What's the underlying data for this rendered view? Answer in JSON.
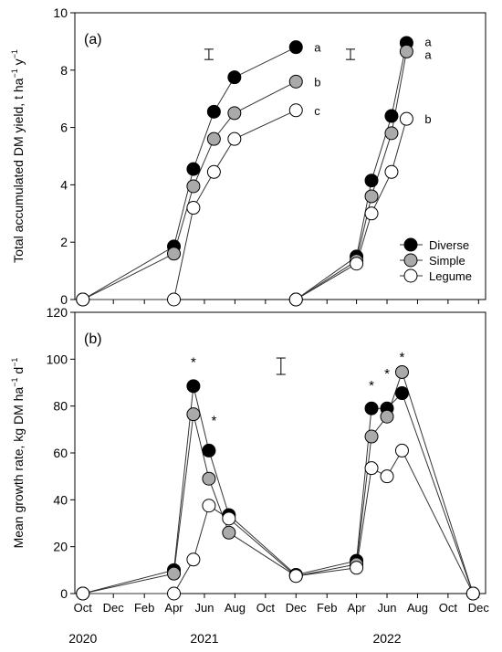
{
  "chart_data": [
    {
      "panel_label": "(a)",
      "type": "line",
      "ylabel": "Total accumulated DM yield, t ha",
      "ylabel_unit_sup1": "−1",
      "ylabel_unit_mid": " y",
      "ylabel_unit_sup2": "−1",
      "ylim": [
        0,
        10
      ],
      "yticks": [
        "0",
        "2",
        "4",
        "6",
        "8",
        "10"
      ],
      "error_bars": [
        {
          "x": "2021-06-10",
          "y": 8.55,
          "half": 0.18
        },
        {
          "x": "2022-03-20",
          "y": 8.55,
          "half": 0.18
        }
      ],
      "series": [
        {
          "name": "Diverse",
          "color": "#000000",
          "segments": [
            [
              [
                "2020-10-01",
                0
              ],
              [
                "2021-04-01",
                1.85
              ],
              [
                "2021-05-10",
                4.55
              ],
              [
                "2021-06-20",
                6.55
              ],
              [
                "2021-07-31",
                7.75
              ],
              [
                "2021-12-01",
                8.8
              ]
            ],
            [
              [
                "2021-12-01",
                0
              ],
              [
                "2022-04-01",
                1.5
              ],
              [
                "2022-05-01",
                4.15
              ],
              [
                "2022-06-10",
                6.4
              ],
              [
                "2022-07-10",
                8.95
              ]
            ]
          ]
        },
        {
          "name": "Simple",
          "color": "#aaaaaa",
          "segments": [
            [
              [
                "2020-10-01",
                0
              ],
              [
                "2021-04-01",
                1.6
              ],
              [
                "2021-05-10",
                3.95
              ],
              [
                "2021-06-20",
                5.6
              ],
              [
                "2021-07-31",
                6.5
              ],
              [
                "2021-12-01",
                7.6
              ]
            ],
            [
              [
                "2021-12-01",
                0
              ],
              [
                "2022-04-01",
                1.35
              ],
              [
                "2022-05-01",
                3.6
              ],
              [
                "2022-06-10",
                5.8
              ],
              [
                "2022-07-10",
                8.65
              ]
            ]
          ]
        },
        {
          "name": "Legume",
          "color": "#ffffff",
          "segments": [
            [
              [
                "2020-10-01",
                0
              ],
              [
                "2021-04-01",
                0
              ],
              [
                "2021-05-10",
                3.2
              ],
              [
                "2021-06-20",
                4.45
              ],
              [
                "2021-07-31",
                5.6
              ],
              [
                "2021-12-01",
                6.6
              ]
            ],
            [
              [
                "2021-12-01",
                0
              ],
              [
                "2022-04-01",
                1.25
              ],
              [
                "2022-05-01",
                3.0
              ],
              [
                "2022-06-10",
                4.45
              ],
              [
                "2022-07-10",
                6.3
              ]
            ]
          ]
        }
      ],
      "annotations": [
        {
          "x": "2021-12-01",
          "y": 8.8,
          "text": "a"
        },
        {
          "x": "2021-12-01",
          "y": 7.6,
          "text": "b"
        },
        {
          "x": "2021-12-01",
          "y": 6.6,
          "text": "c"
        },
        {
          "x": "2022-07-10",
          "y": 9.0,
          "text": "a"
        },
        {
          "x": "2022-07-10",
          "y": 8.55,
          "text": "a"
        },
        {
          "x": "2022-07-10",
          "y": 6.3,
          "text": "b"
        }
      ],
      "legend": {
        "placement": "bottom-right",
        "entries": [
          "Diverse",
          "Simple",
          "Legume"
        ]
      }
    },
    {
      "panel_label": "(b)",
      "type": "line",
      "ylabel": "Mean growth rate, kg DM ha",
      "ylabel_unit_sup1": "−1",
      "ylabel_unit_mid": " d",
      "ylabel_unit_sup2": "−1",
      "ylim": [
        0,
        120
      ],
      "yticks": [
        "0",
        "20",
        "40",
        "60",
        "80",
        "100",
        "120"
      ],
      "error_bars": [
        {
          "x": "2021-11-01",
          "y": 97,
          "half": 3.5
        }
      ],
      "series": [
        {
          "name": "Diverse",
          "color": "#000000",
          "points": [
            [
              "2020-10-01",
              0
            ],
            [
              "2021-04-01",
              10
            ],
            [
              "2021-05-10",
              88.5
            ],
            [
              "2021-06-10",
              61
            ],
            [
              "2021-07-20",
              33.5
            ],
            [
              "2021-12-01",
              8
            ],
            [
              "2022-04-01",
              14
            ],
            [
              "2022-05-01",
              79
            ],
            [
              "2022-06-01",
              79
            ],
            [
              "2022-07-01",
              85.5
            ],
            [
              "2022-11-20",
              0
            ]
          ]
        },
        {
          "name": "Simple",
          "color": "#aaaaaa",
          "points": [
            [
              "2020-10-01",
              0
            ],
            [
              "2021-04-01",
              8.5
            ],
            [
              "2021-05-10",
              76.5
            ],
            [
              "2021-06-10",
              49
            ],
            [
              "2021-07-20",
              26
            ],
            [
              "2021-12-01",
              7.5
            ],
            [
              "2022-04-01",
              12.5
            ],
            [
              "2022-05-01",
              67
            ],
            [
              "2022-06-01",
              75.5
            ],
            [
              "2022-07-01",
              94.5
            ],
            [
              "2022-11-20",
              0
            ]
          ]
        },
        {
          "name": "Legume",
          "color": "#ffffff",
          "points": [
            [
              "2020-10-01",
              0
            ],
            [
              "2021-04-01",
              0
            ],
            [
              "2021-05-10",
              14.5
            ],
            [
              "2021-06-10",
              37.5
            ],
            [
              "2021-07-20",
              32
            ],
            [
              "2021-12-01",
              7.5
            ],
            [
              "2022-04-01",
              11
            ],
            [
              "2022-05-01",
              53.5
            ],
            [
              "2022-06-01",
              50
            ],
            [
              "2022-07-01",
              61
            ],
            [
              "2022-11-20",
              0
            ]
          ]
        }
      ],
      "annotations": [
        {
          "x": "2021-05-10",
          "y": 100,
          "text": "*"
        },
        {
          "x": "2021-06-20",
          "y": 75,
          "text": "*"
        },
        {
          "x": "2022-05-01",
          "y": 90,
          "text": "*"
        },
        {
          "x": "2022-06-01",
          "y": 95,
          "text": "*"
        },
        {
          "x": "2022-07-01",
          "y": 102,
          "text": "*"
        }
      ]
    }
  ],
  "x_axis": {
    "range": [
      "2020-09-15",
      "2022-12-15"
    ],
    "ticks": [
      {
        "date": "2020-10-01",
        "label": "Oct"
      },
      {
        "date": "2020-12-01",
        "label": "Dec"
      },
      {
        "date": "2021-02-01",
        "label": "Feb"
      },
      {
        "date": "2021-04-01",
        "label": "Apr"
      },
      {
        "date": "2021-06-01",
        "label": "Jun"
      },
      {
        "date": "2021-08-01",
        "label": "Aug"
      },
      {
        "date": "2021-10-01",
        "label": "Oct"
      },
      {
        "date": "2021-12-01",
        "label": "Dec"
      },
      {
        "date": "2022-02-01",
        "label": "Feb"
      },
      {
        "date": "2022-04-01",
        "label": "Apr"
      },
      {
        "date": "2022-06-01",
        "label": "Jun"
      },
      {
        "date": "2022-08-01",
        "label": "Aug"
      },
      {
        "date": "2022-10-01",
        "label": "Oct"
      },
      {
        "date": "2022-12-01",
        "label": "Dec"
      }
    ],
    "years": [
      {
        "date": "2020-10-01",
        "label": "2020"
      },
      {
        "date": "2021-06-01",
        "label": "2021"
      },
      {
        "date": "2022-06-01",
        "label": "2022"
      }
    ]
  }
}
